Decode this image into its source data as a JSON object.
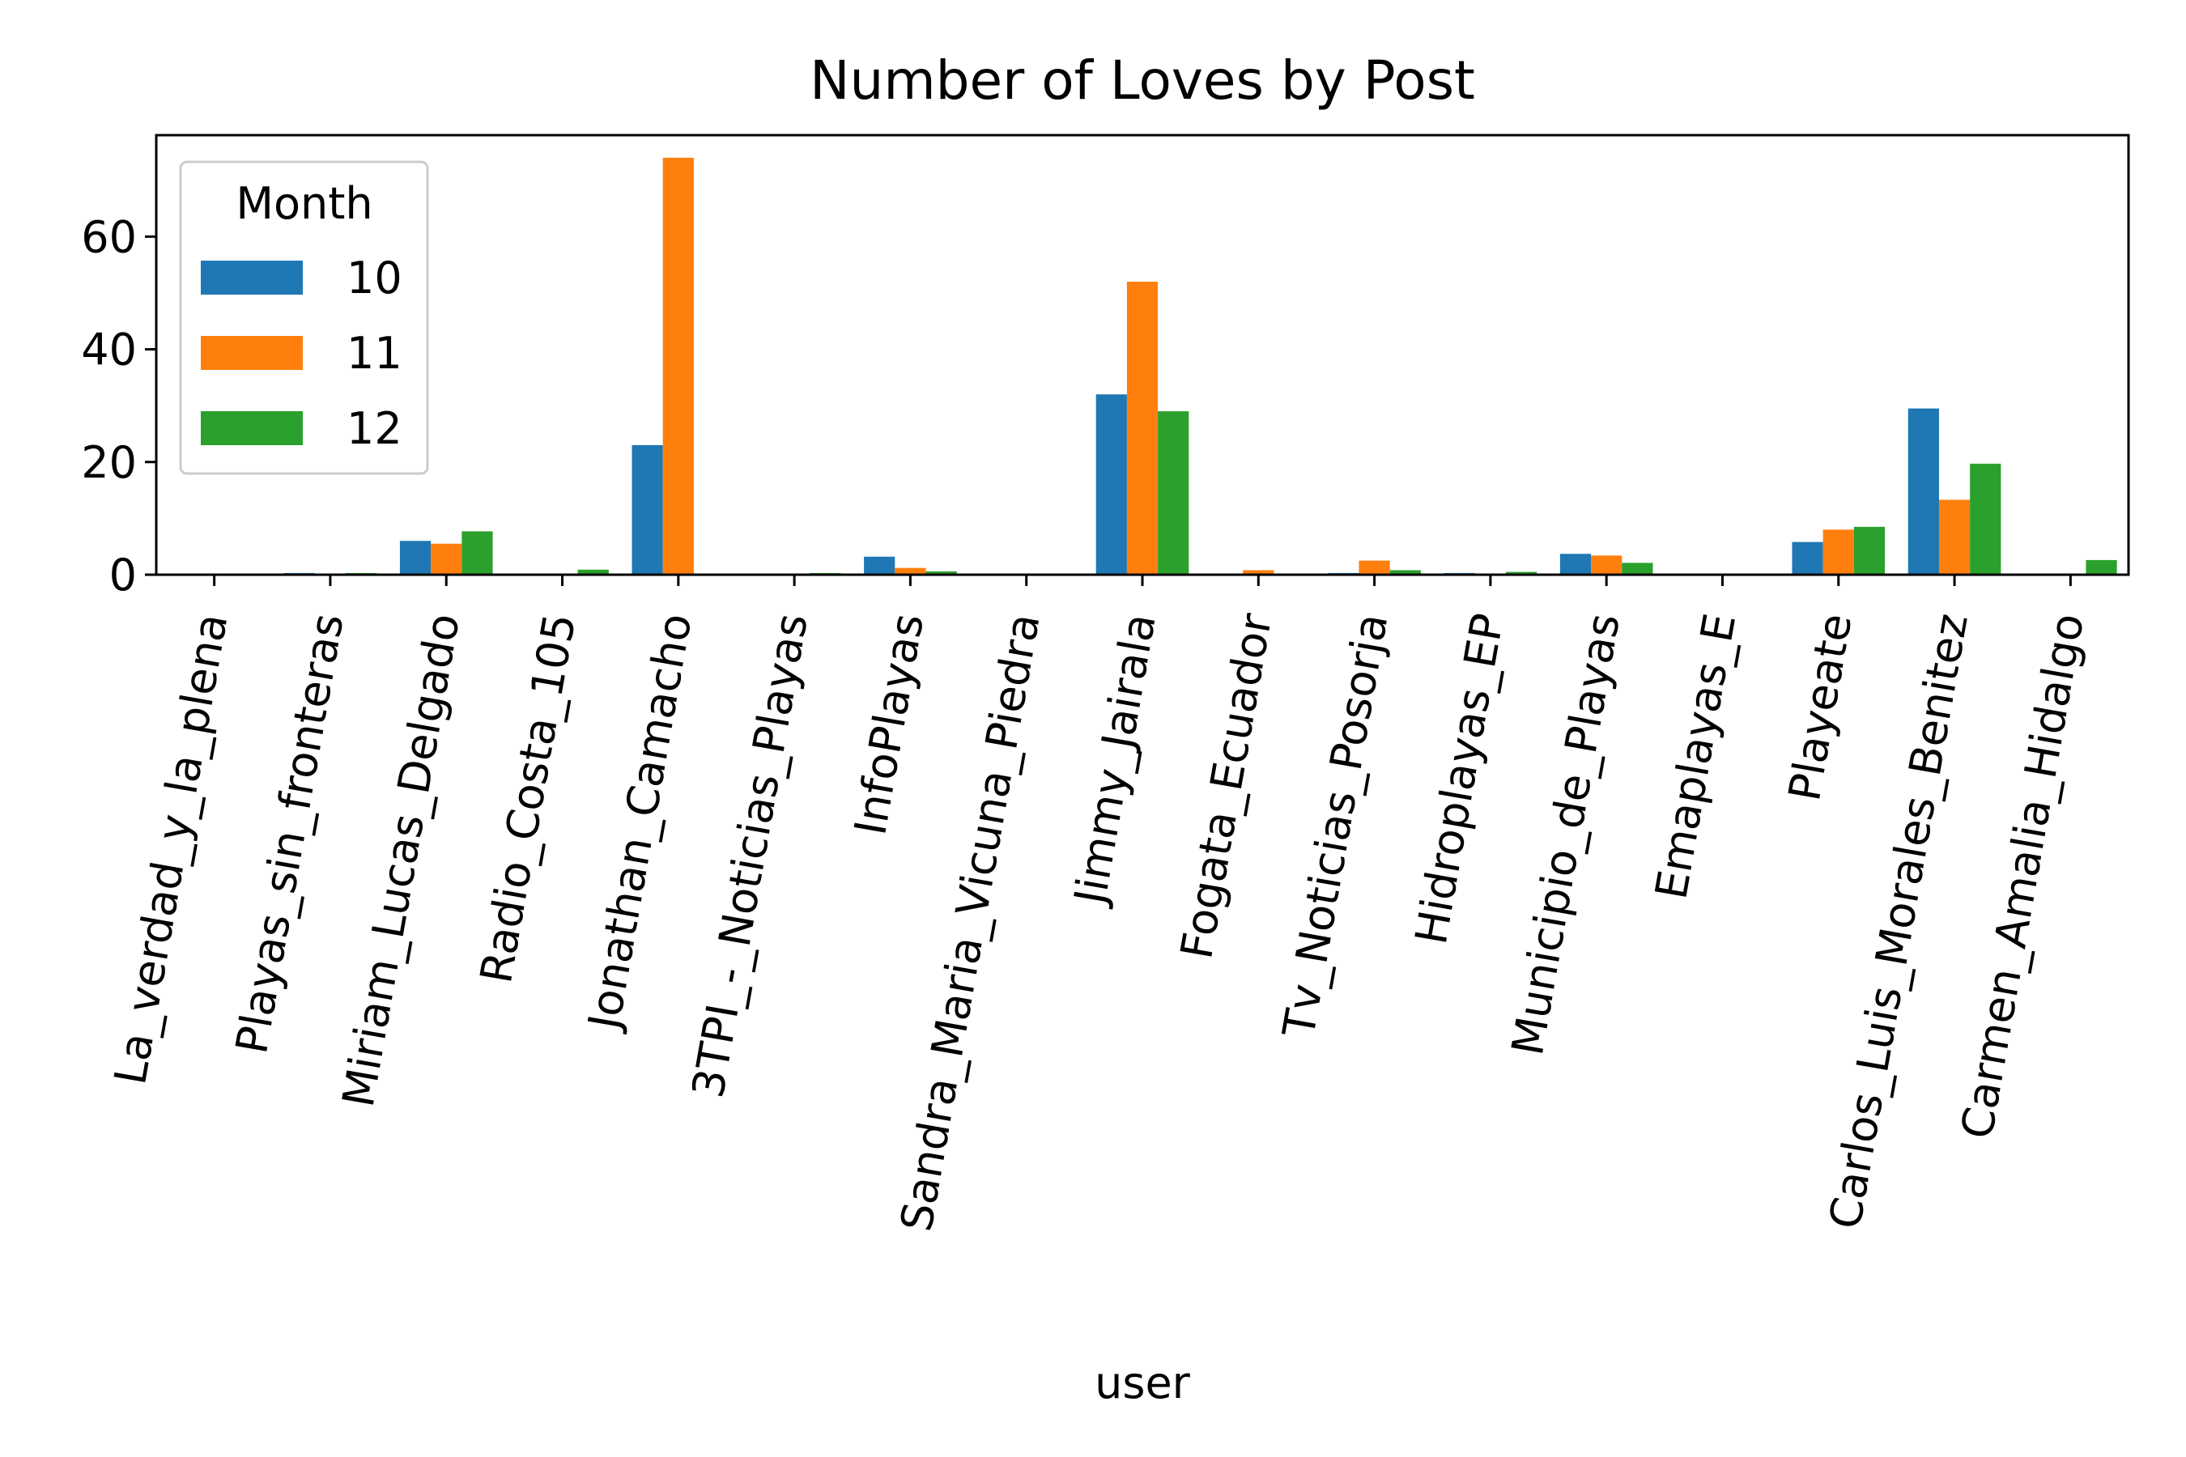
{
  "chart_data": {
    "type": "bar",
    "title": "Number of Loves by Post",
    "xlabel": "user",
    "ylabel": "",
    "ylim": [
      0,
      78
    ],
    "yticks": [
      0,
      20,
      40,
      60
    ],
    "categories": [
      "La_verdad_y_la_plena",
      "Playas_sin_fronteras",
      "Miriam_Lucas_Delgado",
      "Radio_Costa_105",
      "Jonathan_Camacho",
      "3TPI_-_Noticias_Playas",
      "InfoPlayas",
      "Sandra_Maria_Vicuna_Piedra",
      "Jimmy_Jairala",
      "Fogata_Ecuador",
      "Tv_Noticias_Posorja",
      "Hidroplayas_EP",
      "Municipio_de_Playas",
      "Emaplayas_E",
      "Playeate",
      "Carlos_Luis_Morales_Benitez",
      "Carmen_Amalia_Hidalgo"
    ],
    "legend": {
      "title": "Month",
      "position": "upper left"
    },
    "series": [
      {
        "name": "10",
        "color": "#1f77b4",
        "values": [
          0,
          0.3,
          6,
          0,
          23,
          0.2,
          3.2,
          0.2,
          32,
          0,
          0.3,
          0.3,
          3.7,
          0,
          5.8,
          29.5,
          0
        ]
      },
      {
        "name": "11",
        "color": "#ff7f0e",
        "values": [
          0,
          0,
          5.5,
          0,
          74,
          0,
          1.2,
          0,
          52,
          0.8,
          2.5,
          0,
          3.4,
          0,
          8,
          13.3,
          0
        ]
      },
      {
        "name": "12",
        "color": "#2ca02c",
        "values": [
          0,
          0.3,
          7.7,
          0.9,
          0,
          0.3,
          0.6,
          0,
          29,
          0,
          0.8,
          0.5,
          2.1,
          0,
          8.5,
          19.7,
          2.6
        ]
      }
    ]
  }
}
